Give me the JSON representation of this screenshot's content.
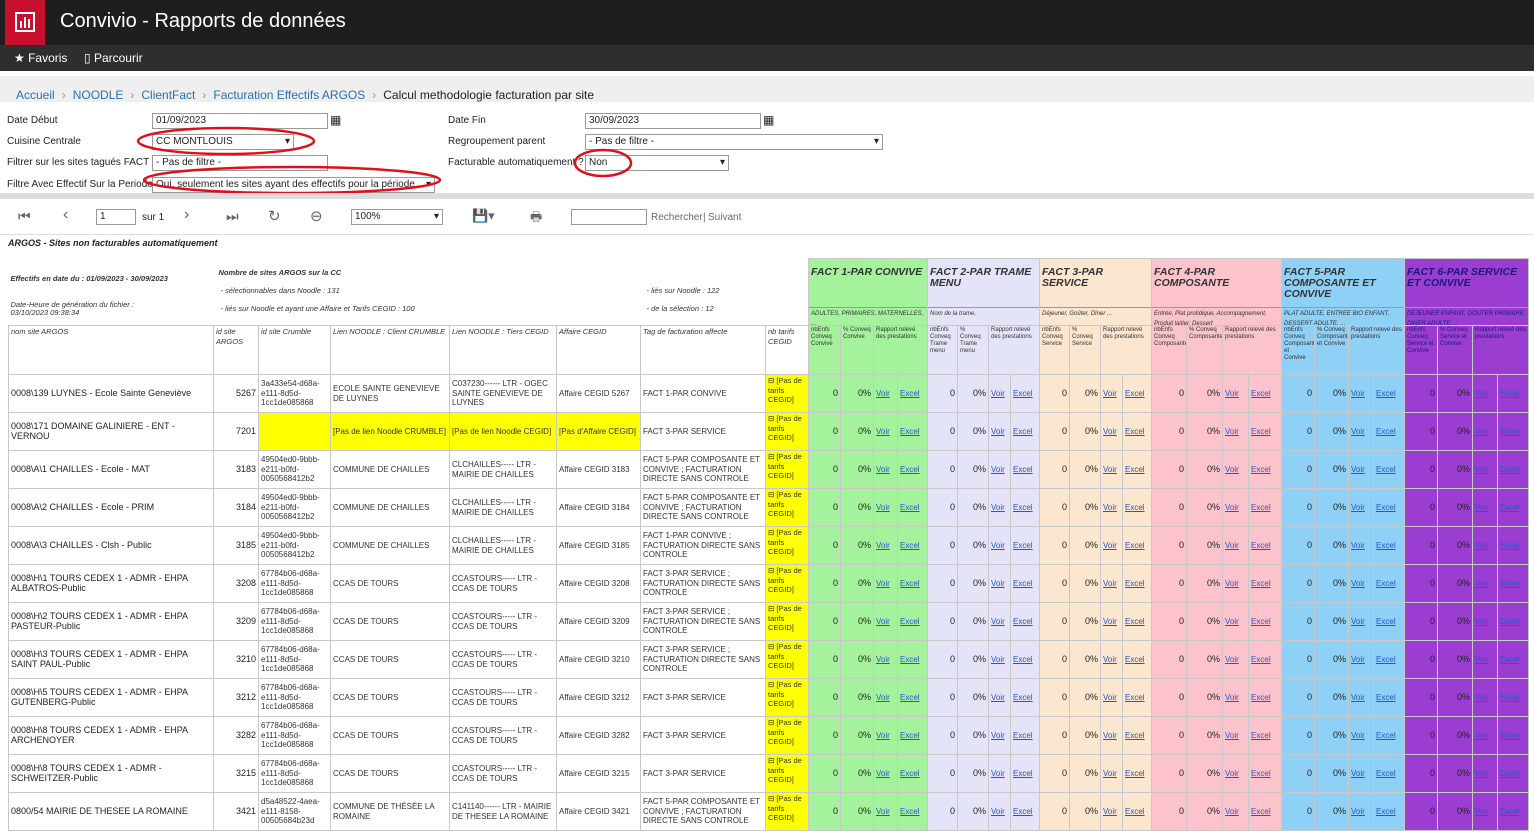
{
  "header": {
    "title": "Convivio - Rapports de données"
  },
  "nav": [
    "Favoris",
    "Parcourir"
  ],
  "breadcrumb": [
    "Accueil",
    "NOODLE",
    "ClientFact",
    "Facturation Effectifs ARGOS",
    "Calcul methodologie facturation par site"
  ],
  "filters": [
    {
      "label": "Date Début",
      "value": "01/09/2023"
    },
    {
      "label": "Cuisine Centrale",
      "value": "CC MONTLOUIS"
    },
    {
      "label": "Filtrer sur les sites tagués FACT ?",
      "value": "- Pas de filtre -"
    },
    {
      "label": "Filtre Avec Effectif Sur la Periode",
      "value": "Oui, seulement les sites ayant des effectifs pour la période"
    },
    {
      "label": "Date Fin",
      "value": "30/09/2023"
    },
    {
      "label": "Regroupement parent",
      "value": "- Pas de filtre -"
    },
    {
      "label": "Facturable automatiquement ?",
      "value": "Non"
    }
  ],
  "toolbar": {
    "page": 1,
    "of": "sur 1",
    "zoom": "100%",
    "search": "Rechercher",
    "next": "Suivant"
  },
  "report": {
    "title": "ARGOS - Sites non facturables automatiquement",
    "info": [
      "Effectifs en date du : 01/09/2023 - 30/09/2023",
      "Date-Heure de génération du fichier : 03/10/2023 09:38:34",
      "Nombre de sites ARGOS sur la CC",
      "- sélectionnables dans Noodle : 131",
      "- liés sur Noodle et ayant une Affaire et Tarifs CEGID : 100",
      "- liés sur Noodle : 122",
      "- de la sélection : 12"
    ]
  },
  "table": {
    "columns": [
      "nom site ARGOS",
      "id site ARGOS",
      "id site Crumble",
      "Lien NOODLE : Client CRUMBLE",
      "Lien NOODLE : Tiers CEGID",
      "Affaire CEGID",
      "Tag de facturation affecte",
      "nb tarifs CEGID"
    ],
    "groups": [
      {
        "title": "FACT 1-PAR CONVIVE",
        "desc": "ADULTES, PRIMAIRES, MATERNELLES, ...",
        "color": "#a4f29c",
        "cols": [
          "nbEnfs Conveq Convive",
          "% Conveq Convive",
          "Rapport relevé des prestations"
        ]
      },
      {
        "title": "FACT 2-PAR TRAME MENU",
        "desc": "Nom de la trame.",
        "color": "#e4e4f8",
        "cols": [
          "nbEnfs Conveq Trame menu",
          "% Conveq Trame menu",
          "Rapport relevé des prestations"
        ]
      },
      {
        "title": "FACT 3-PAR SERVICE",
        "desc": "Déjeuner, Goûter, Dîner ...",
        "color": "#fbe6cf",
        "cols": [
          "nbEnfs Conveq Service",
          "% Conveq Service",
          "Rapport relevé des prestations"
        ]
      },
      {
        "title": "FACT 4-PAR COMPOSANTE",
        "desc": "Entrée, Plat protidique, Accompagnement, Produit laitier, Dessert",
        "color": "#fcc3cd",
        "cols": [
          "nbEnfs Conveq Composante",
          "% Conveq Composante",
          "Rapport relevé des prestations"
        ]
      },
      {
        "title": "FACT 5-PAR COMPOSANTE ET CONVIVE",
        "desc": "PLAT ADULTE, ENTREE BIO ENFANT, DESSERT ADULTE, ...",
        "color": "#8ed0f6",
        "cols": [
          "nbEnfs Conveq Composante et Convive",
          "% Conveq Composante et Convive",
          "Rapport relevé des prestations"
        ]
      },
      {
        "title": "FACT 6-PAR SERVICE ET CONVIVE",
        "desc": "DEJEUNER ENFANT, GOUTER PRIMAIRE, DINER ADULTE, ...",
        "color": "#9a3dd0",
        "cols": [
          "nbEnfs Conveq Service et Convive",
          "% Conveq Service et Convive",
          "Rapport relevé des prestations"
        ]
      }
    ],
    "links": [
      "Voir",
      "Excel"
    ],
    "rows": [
      {
        "cells": [
          "0008\\139 LUYNES - Ecole Sainte Geneviève",
          5267,
          "3a433e54-d68a-e111-8d5d-1cc1de085868",
          "ECOLE SAINTE GENEVIEVE DE LUYNES",
          "C037230------ LTR - OGEC SAINTE GENEVIEVE DE LUYNES",
          "Affaire CEGID 5267",
          "FACT 1-PAR CONVIVE",
          "[Pas de tarifs CEGID]"
        ],
        "fact": [
          [
            0,
            "0%"
          ],
          [
            0,
            "0%"
          ],
          [
            0,
            "0%"
          ],
          [
            0,
            "0%"
          ],
          [
            0,
            "0%"
          ],
          [
            0,
            "0%"
          ]
        ]
      },
      {
        "cells": [
          "0008\\171 DOMAINE GALINIERE - ENT - VERNOU",
          7201,
          null,
          "[Pas de lien Noodle CRUMBLE]",
          "[Pas de lien Noodle CEGID]",
          "[Pas d'Affaire CEGID]",
          "FACT 3-PAR SERVICE",
          "[Pas de tarifs CEGID]"
        ],
        "fact": [
          [
            0,
            "0%"
          ],
          [
            0,
            "0%"
          ],
          [
            0,
            "0%"
          ],
          [
            0,
            "0%"
          ],
          [
            0,
            "0%"
          ],
          [
            0,
            "0%"
          ]
        ]
      },
      {
        "cells": [
          "0008\\A\\1 CHAILLES - Ecole - MAT",
          3183,
          "49504ed0-9bbb-e211-b0fd-0050568412b2",
          "COMMUNE DE CHAILLES",
          "CLCHAILLES----- LTR - MAIRIE DE CHAILLES",
          "Affaire CEGID 3183",
          "FACT 5-PAR COMPOSANTE ET CONVIVE ; FACTURATION DIRECTE SANS CONTROLE",
          "[Pas de tarifs CEGID]"
        ],
        "fact": [
          [
            0,
            "0%"
          ],
          [
            0,
            "0%"
          ],
          [
            0,
            "0%"
          ],
          [
            0,
            "0%"
          ],
          [
            0,
            "0%"
          ],
          [
            0,
            "0%"
          ]
        ]
      },
      {
        "cells": [
          "0008\\A\\2 CHAILLES - Ecole - PRIM",
          3184,
          "49504ed0-9bbb-e211-b0fd-0050568412b2",
          "COMMUNE DE CHAILLES",
          "CLCHAILLES----- LTR - MAIRIE DE CHAILLES",
          "Affaire CEGID 3184",
          "FACT 5-PAR COMPOSANTE ET CONVIVE ; FACTURATION DIRECTE SANS CONTROLE",
          "[Pas de tarifs CEGID]"
        ],
        "fact": [
          [
            0,
            "0%"
          ],
          [
            0,
            "0%"
          ],
          [
            0,
            "0%"
          ],
          [
            0,
            "0%"
          ],
          [
            0,
            "0%"
          ],
          [
            0,
            "0%"
          ]
        ]
      },
      {
        "cells": [
          "0008\\A\\3 CHAILLES - Clsh - Public",
          3185,
          "49504ed0-9bbb-e211-b0fd-0050568412b2",
          "COMMUNE DE CHAILLES",
          "CLCHAILLES----- LTR - MAIRIE DE CHAILLES",
          "Affaire CEGID 3185",
          "FACT 1-PAR CONVIVE ; FACTURATION DIRECTE SANS CONTROLE",
          "[Pas de tarifs CEGID]"
        ],
        "fact": [
          [
            0,
            "0%"
          ],
          [
            0,
            "0%"
          ],
          [
            0,
            "0%"
          ],
          [
            0,
            "0%"
          ],
          [
            0,
            "0%"
          ],
          [
            0,
            "0%"
          ]
        ]
      },
      {
        "cells": [
          "0008\\H\\1 TOURS CEDEX 1 - ADMR - EHPA ALBATROS-Public",
          3208,
          "67784b06-d68a-e111-8d5d-1cc1de085868",
          "CCAS DE TOURS",
          "CCASTOURS----- LTR - CCAS DE TOURS",
          "Affaire CEGID 3208",
          "FACT 3-PAR SERVICE ; FACTURATION DIRECTE SANS CONTROLE",
          "[Pas de tarifs CEGID]"
        ],
        "fact": [
          [
            0,
            "0%"
          ],
          [
            0,
            "0%"
          ],
          [
            0,
            "0%"
          ],
          [
            0,
            "0%"
          ],
          [
            0,
            "0%"
          ],
          [
            0,
            "0%"
          ]
        ]
      },
      {
        "cells": [
          "0008\\H\\2 TOURS CEDEX 1 - ADMR - EHPA PASTEUR-Public",
          3209,
          "67784b06-d68a-e111-8d5d-1cc1de085868",
          "CCAS DE TOURS",
          "CCASTOURS----- LTR - CCAS DE TOURS",
          "Affaire CEGID 3209",
          "FACT 3-PAR SERVICE ; FACTURATION DIRECTE SANS CONTROLE",
          "[Pas de tarifs CEGID]"
        ],
        "fact": [
          [
            0,
            "0%"
          ],
          [
            0,
            "0%"
          ],
          [
            0,
            "0%"
          ],
          [
            0,
            "0%"
          ],
          [
            0,
            "0%"
          ],
          [
            0,
            "0%"
          ]
        ]
      },
      {
        "cells": [
          "0008\\H\\3 TOURS CEDEX 1 - ADMR - EHPA SAINT PAUL-Public",
          3210,
          "67784b06-d68a-e111-8d5d-1cc1de085868",
          "CCAS DE TOURS",
          "CCASTOURS----- LTR - CCAS DE TOURS",
          "Affaire CEGID 3210",
          "FACT 3-PAR SERVICE ; FACTURATION DIRECTE SANS CONTROLE",
          "[Pas de tarifs CEGID]"
        ],
        "fact": [
          [
            0,
            "0%"
          ],
          [
            0,
            "0%"
          ],
          [
            0,
            "0%"
          ],
          [
            0,
            "0%"
          ],
          [
            0,
            "0%"
          ],
          [
            0,
            "0%"
          ]
        ]
      },
      {
        "cells": [
          "0008\\H\\5 TOURS CEDEX 1 - ADMR - EHPA GUTENBERG-Public",
          3212,
          "67784b06-d68a-e111-8d5d-1cc1de085868",
          "CCAS DE TOURS",
          "CCASTOURS----- LTR - CCAS DE TOURS",
          "Affaire CEGID 3212",
          "FACT 3-PAR SERVICE",
          "[Pas de tarifs CEGID]"
        ],
        "fact": [
          [
            0,
            "0%"
          ],
          [
            0,
            "0%"
          ],
          [
            0,
            "0%"
          ],
          [
            0,
            "0%"
          ],
          [
            0,
            "0%"
          ],
          [
            0,
            "0%"
          ]
        ]
      },
      {
        "cells": [
          "0008\\H\\8 TOURS CEDEX 1 - ADMR - EHPA ARCHENOYER",
          3282,
          "67784b06-d68a-e111-8d5d-1cc1de085868",
          "CCAS DE TOURS",
          "CCASTOURS----- LTR - CCAS DE TOURS",
          "Affaire CEGID 3282",
          "FACT 3-PAR SERVICE",
          "[Pas de tarifs CEGID]"
        ],
        "fact": [
          [
            0,
            "0%"
          ],
          [
            0,
            "0%"
          ],
          [
            0,
            "0%"
          ],
          [
            0,
            "0%"
          ],
          [
            0,
            "0%"
          ],
          [
            0,
            "0%"
          ]
        ]
      },
      {
        "cells": [
          "0008\\H\\8 TOURS CEDEX 1 - ADMR - SCHWEITZER-Public",
          3215,
          "67784b06-d68a-e111-8d5d-1cc1de085868",
          "CCAS DE TOURS",
          "CCASTOURS----- LTR - CCAS DE TOURS",
          "Affaire CEGID 3215",
          "FACT 3-PAR SERVICE",
          "[Pas de tarifs CEGID]"
        ],
        "fact": [
          [
            0,
            "0%"
          ],
          [
            0,
            "0%"
          ],
          [
            0,
            "0%"
          ],
          [
            0,
            "0%"
          ],
          [
            0,
            "0%"
          ],
          [
            0,
            "0%"
          ]
        ]
      },
      {
        "cells": [
          "0800/54 MAIRIE DE THESEE LA ROMAINE",
          3421,
          "d5a48522-4aea-e111-8158-00505684b23d",
          "COMMUNE DE THÉSÉE LA ROMAINE",
          "C141140------ LTR - MAIRIE DE THESEE LA ROMAINE",
          "Affaire CEGID 3421",
          "FACT 5-PAR COMPOSANTE ET CONVIVE ; FACTURATION DIRECTE SANS CONTROLE",
          "[Pas de tarifs CEGID]"
        ],
        "fact": [
          [
            0,
            "0%"
          ],
          [
            0,
            "0%"
          ],
          [
            0,
            "0%"
          ],
          [
            0,
            "0%"
          ],
          [
            0,
            "0%"
          ],
          [
            0,
            "0%"
          ]
        ]
      }
    ]
  }
}
